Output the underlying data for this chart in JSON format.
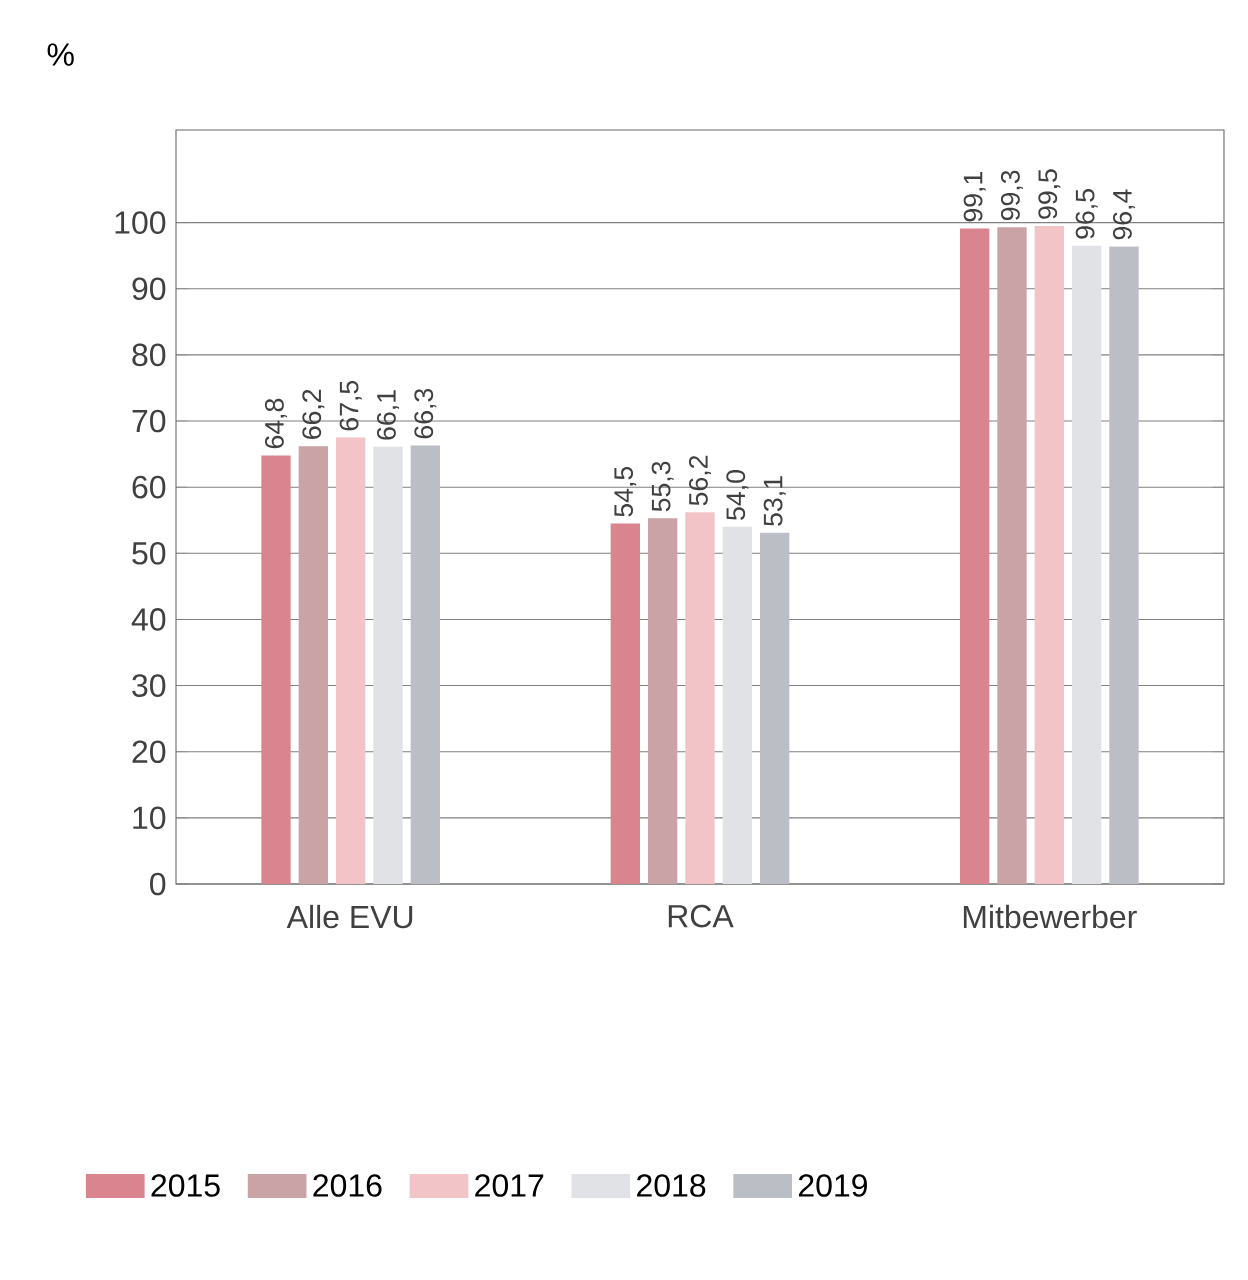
{
  "chart_data": {
    "type": "bar",
    "ylabel": "%",
    "categories": [
      "Alle EVU",
      "RCA",
      "Mitbewerber"
    ],
    "series": [
      {
        "name": "2015",
        "color": "#d9848f",
        "values": [
          64.8,
          54.5,
          99.1
        ],
        "value_labels": [
          "64,8",
          "54,5",
          "99,1"
        ]
      },
      {
        "name": "2016",
        "color": "#c9a3a5",
        "values": [
          66.2,
          55.3,
          99.3
        ],
        "value_labels": [
          "66,2",
          "55,3",
          "99,3"
        ]
      },
      {
        "name": "2017",
        "color": "#f3c4c7",
        "values": [
          67.5,
          56.2,
          99.5
        ],
        "value_labels": [
          "67,5",
          "56,2",
          "99,5"
        ]
      },
      {
        "name": "2018",
        "color": "#e1e2e5",
        "values": [
          66.1,
          54.0,
          96.5
        ],
        "value_labels": [
          "66,1",
          "54,0",
          "96,5"
        ]
      },
      {
        "name": "2019",
        "color": "#bcbec6",
        "values": [
          66.3,
          53.1,
          96.4
        ],
        "value_labels": [
          "66,3",
          "53,1",
          "96,4"
        ]
      }
    ],
    "ylim": [
      0,
      114
    ],
    "yticks": [
      0,
      10,
      20,
      30,
      40,
      50,
      60,
      70,
      80,
      90,
      100
    ],
    "grid": "y",
    "legend": "bottom"
  }
}
